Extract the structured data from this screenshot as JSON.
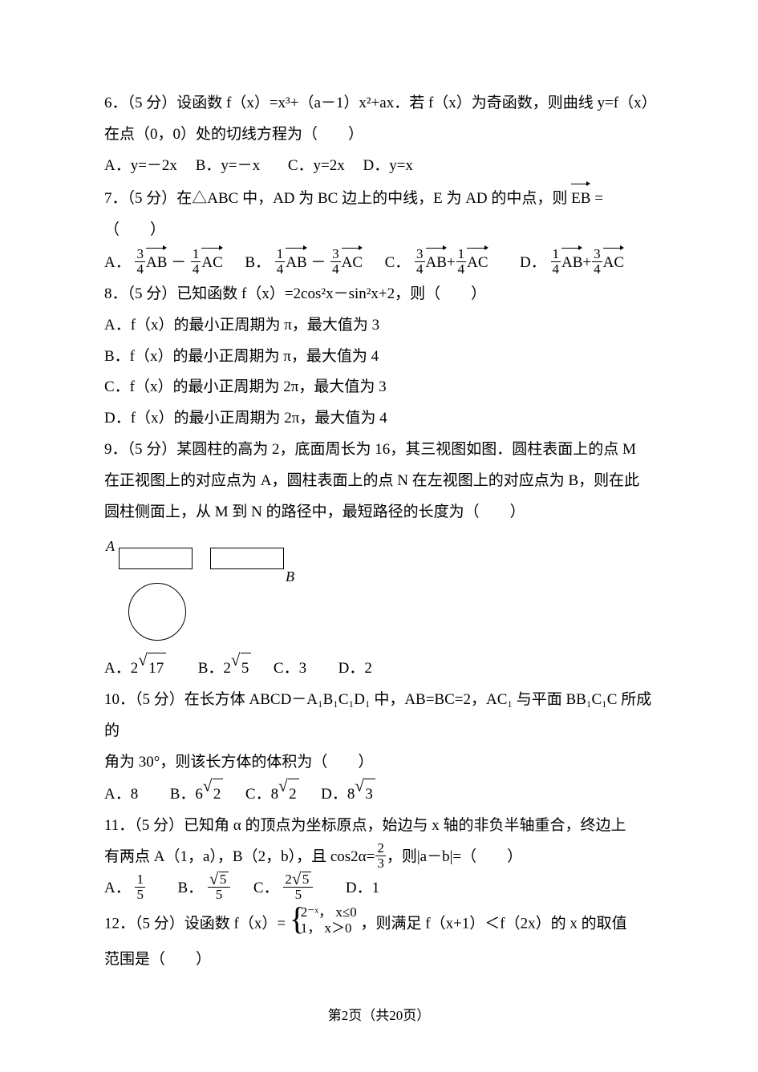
{
  "footer": "第2页（共20页）",
  "q6": {
    "l1": "6．（5 分）设函数 f（x）=x³+（a－1）x²+ax．若 f（x）为奇函数，则曲线 y=f（x）",
    "l2": "在点（0，0）处的切线方程为（　　）",
    "optA": "A．y=－2x",
    "optB": "B．y=－x",
    "optC": "C．y=2x",
    "optD": "D．y=x"
  },
  "q7": {
    "stem_a": "7．（5 分）在△ABC 中，AD 为 BC 边上的中线，E 为 AD 的中点，则",
    "stem_vec": "EB",
    "stem_b": "=（　　）",
    "A": "A．",
    "B": "B．",
    "C": "C．",
    "D": "D．",
    "AB": "AB",
    "AC": "AC",
    "n3": "3",
    "n1": "1",
    "d4": "4",
    "minus": "－",
    "plus": "+"
  },
  "q8": {
    "stem": "8．（5 分）已知函数 f（x）=2cos²x－sin²x+2，则（　　）",
    "A": "A．f（x）的最小正周期为 π，最大值为 3",
    "B": "B．f（x）的最小正周期为 π，最大值为 4",
    "C": "C．f（x）的最小正周期为 2π，最大值为 3",
    "D": "D．f（x）的最小正周期为 2π，最大值为 4"
  },
  "q9": {
    "l1": "9．（5 分）某圆柱的高为 2，底面周长为 16，其三视图如图．圆柱表面上的点 M",
    "l2": "在正视图上的对应点为 A，圆柱表面上的点 N 在左视图上的对应点为 B，则在此",
    "l3": "圆柱侧面上，从 M 到 N 的路径中，最短路径的长度为（　　）",
    "labelA": "A",
    "labelB": "B",
    "optA_pre": "A．2",
    "optA_rad": "17",
    "optB_pre": "B．2",
    "optB_rad": "5",
    "optC": "C．3",
    "optD": "D．2"
  },
  "q10": {
    "l1": "10．（5 分）在长方体 ABCD－A₁B₁C₁D₁ 中，AB=BC=2，AC₁ 与平面 BB₁C₁C 所成的",
    "l2": "角为 30°，则该长方体的体积为（　　）",
    "optA": "A．8",
    "optB_pre": "B．6",
    "optB_rad": "2",
    "optC_pre": "C．8",
    "optC_rad": "2",
    "optD_pre": "D．8",
    "optD_rad": "3"
  },
  "q11": {
    "l1": "11．（5 分）已知角 α 的顶点为坐标原点，始边与 x 轴的非负半轴重合，终边上",
    "l2a": "有两点 A（1，a），B（2，b），且 cos2α=",
    "l2_num": "2",
    "l2_den": "3",
    "l2b": "，则|a－b|=（　　）",
    "A": "A．",
    "B": "B．",
    "C": "C．",
    "D": "D．1",
    "fA_num": "1",
    "fA_den": "5",
    "fB_rad": "5",
    "fB_den": "5",
    "fC_pre": "2",
    "fC_rad": "5",
    "fC_den": "5"
  },
  "q12": {
    "pre": "12．（5 分）设函数 f（x）=",
    "row1": "2⁻ˣ， x≤0",
    "row2": "1， x＞0",
    "post": "，则满足 f（x+1）＜f（2x）的 x 的取值",
    "l2": "范围是（　　）"
  }
}
